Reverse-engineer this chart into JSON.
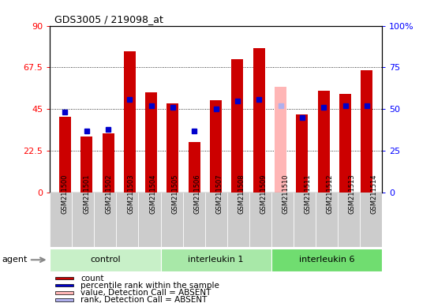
{
  "title": "GDS3005 / 219098_at",
  "samples": [
    "GSM211500",
    "GSM211501",
    "GSM211502",
    "GSM211503",
    "GSM211504",
    "GSM211505",
    "GSM211506",
    "GSM211507",
    "GSM211508",
    "GSM211509",
    "GSM211510",
    "GSM211511",
    "GSM211512",
    "GSM211513",
    "GSM211514"
  ],
  "counts": [
    41,
    30,
    32,
    76,
    54,
    48,
    27,
    50,
    72,
    78,
    57,
    42,
    55,
    53,
    66
  ],
  "percentile_ranks": [
    48,
    37,
    38,
    56,
    52,
    51,
    37,
    50,
    55,
    56,
    52,
    45,
    51,
    52,
    52
  ],
  "absent": [
    false,
    false,
    false,
    false,
    false,
    false,
    false,
    false,
    false,
    false,
    true,
    false,
    false,
    false,
    false
  ],
  "groups": [
    {
      "name": "control",
      "start": 0,
      "end": 5
    },
    {
      "name": "interleukin 1",
      "start": 5,
      "end": 10
    },
    {
      "name": "interleukin 6",
      "start": 10,
      "end": 15
    }
  ],
  "group_colors": [
    "#c8f0c8",
    "#a8e8a8",
    "#70dd70"
  ],
  "ylim_left": [
    0,
    90
  ],
  "ylim_right": [
    0,
    100
  ],
  "yticks_left": [
    0,
    22.5,
    45,
    67.5,
    90
  ],
  "ytick_labels_left": [
    "0",
    "22.5",
    "45",
    "67.5",
    "90"
  ],
  "yticks_right": [
    0,
    25,
    50,
    75,
    100
  ],
  "ytick_labels_right": [
    "0",
    "25",
    "50",
    "75",
    "100%"
  ],
  "bar_color": "#cc0000",
  "bar_absent_color": "#ffb6b6",
  "dot_color": "#0000cc",
  "dot_absent_color": "#b0b0ee",
  "bar_width": 0.55,
  "agent_label": "agent",
  "xtick_bg_color": "#cccccc",
  "legend_items": [
    {
      "label": "count",
      "color": "#cc0000"
    },
    {
      "label": "percentile rank within the sample",
      "color": "#0000cc"
    },
    {
      "label": "value, Detection Call = ABSENT",
      "color": "#ffb6b6"
    },
    {
      "label": "rank, Detection Call = ABSENT",
      "color": "#b0b0ee"
    }
  ]
}
